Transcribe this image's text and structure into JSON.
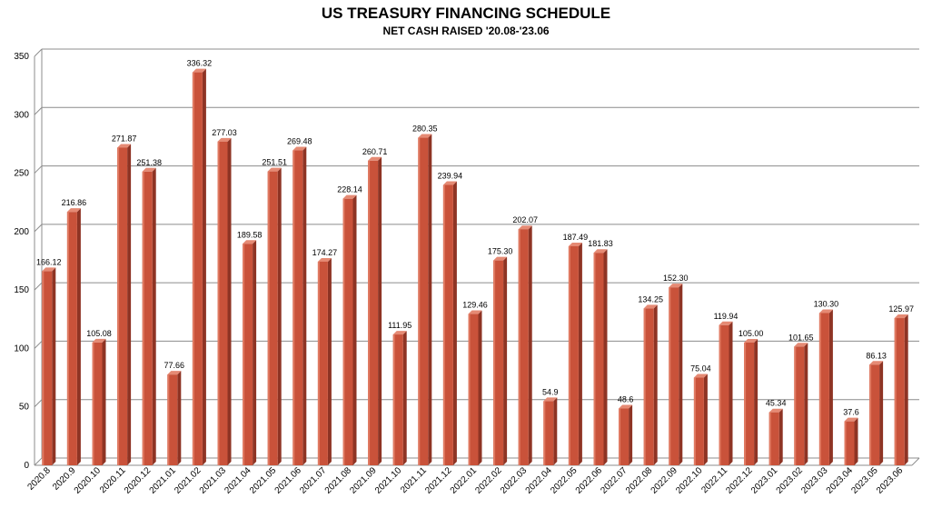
{
  "chart_data": {
    "type": "bar",
    "title": "US TREASURY FINANCING SCHEDULE",
    "subtitle": "NET CASH RAISED '20.08-'23.06",
    "xlabel": "",
    "ylabel": "",
    "ylim": [
      0,
      350
    ],
    "yticks": [
      0,
      50,
      100,
      150,
      200,
      250,
      300,
      350
    ],
    "grid": true,
    "legend": "none",
    "bar_color": "#c9523a",
    "categories": [
      "2020.8",
      "2020.9",
      "2020.10",
      "2020.11",
      "2020.12",
      "2021.01",
      "2021.02",
      "2021.03",
      "2021.04",
      "2021.05",
      "2021.06",
      "2021.07",
      "2021.08",
      "2021.09",
      "2021.10",
      "2021.11",
      "2021.12",
      "2022.01",
      "2022.02",
      "2022.03",
      "2022.04",
      "2022.05",
      "2022.06",
      "2022.07",
      "2022.08",
      "2022.09",
      "2022.10",
      "2022.11",
      "2022.12",
      "2023.01",
      "2023.02",
      "2023.03",
      "2023.04",
      "2023.05",
      "2023.06"
    ],
    "values": [
      166.12,
      216.86,
      105.08,
      271.87,
      251.38,
      77.66,
      336.32,
      277.03,
      189.58,
      251.51,
      269.48,
      174.27,
      228.14,
      260.71,
      111.95,
      280.35,
      239.94,
      129.46,
      175.3,
      202.07,
      54.9,
      187.49,
      181.83,
      48.6,
      134.25,
      152.3,
      75.04,
      119.94,
      105.0,
      45.34,
      101.65,
      130.3,
      37.6,
      86.13,
      125.97
    ],
    "labels": [
      "166.12",
      "216.86",
      "105.08",
      "271.87",
      "251.38",
      "77.66",
      "336.32",
      "277.03",
      "189.58",
      "251.51",
      "269.48",
      "174.27",
      "228.14",
      "260.71",
      "111.95",
      "280.35",
      "239.94",
      "129.46",
      "175.30",
      "202.07",
      "54.9",
      "187.49",
      "181.83",
      "48.6",
      "134.25",
      "152.30",
      "75.04",
      "119.94",
      "105.00",
      "45.34",
      "101.65",
      "130.30",
      "37.6",
      "86.13",
      "125.97"
    ]
  }
}
